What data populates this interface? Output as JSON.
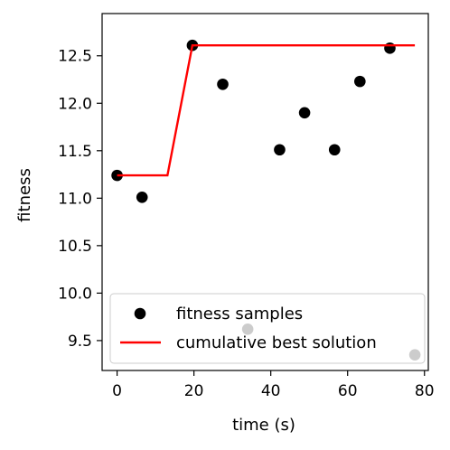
{
  "chart_data": {
    "type": "scatter",
    "xlabel": "time (s)",
    "ylabel": "fitness",
    "xlim": [
      -3.9,
      81.0
    ],
    "ylim": [
      9.185,
      12.945
    ],
    "x_ticks": [
      0,
      20,
      40,
      60,
      80
    ],
    "x_tick_labels": [
      "0",
      "20",
      "40",
      "60",
      "80"
    ],
    "y_ticks": [
      9.5,
      10.0,
      10.5,
      11.0,
      11.5,
      12.0,
      12.5
    ],
    "y_tick_labels": [
      "9.5",
      "10.0",
      "10.5",
      "11.0",
      "11.5",
      "12.0",
      "12.5"
    ],
    "grid": false,
    "legend_position": "lower-left",
    "series": [
      {
        "name": "fitness samples",
        "kind": "scatter",
        "color": "#000000",
        "points": [
          {
            "x": 0.0,
            "y": 11.24
          },
          {
            "x": 6.5,
            "y": 11.01
          },
          {
            "x": 19.6,
            "y": 12.61
          },
          {
            "x": 27.5,
            "y": 12.2
          },
          {
            "x": 34.0,
            "y": 9.62
          },
          {
            "x": 42.3,
            "y": 11.51
          },
          {
            "x": 48.8,
            "y": 11.9
          },
          {
            "x": 56.6,
            "y": 11.51
          },
          {
            "x": 63.2,
            "y": 12.23
          },
          {
            "x": 71.0,
            "y": 12.58
          },
          {
            "x": 77.5,
            "y": 9.35
          }
        ]
      },
      {
        "name": "cumulative best solution",
        "kind": "line",
        "color": "#ff0000",
        "points": [
          {
            "x": 0.0,
            "y": 11.24
          },
          {
            "x": 13.1,
            "y": 11.24
          },
          {
            "x": 19.6,
            "y": 12.61
          },
          {
            "x": 77.5,
            "y": 12.61
          }
        ]
      }
    ]
  }
}
